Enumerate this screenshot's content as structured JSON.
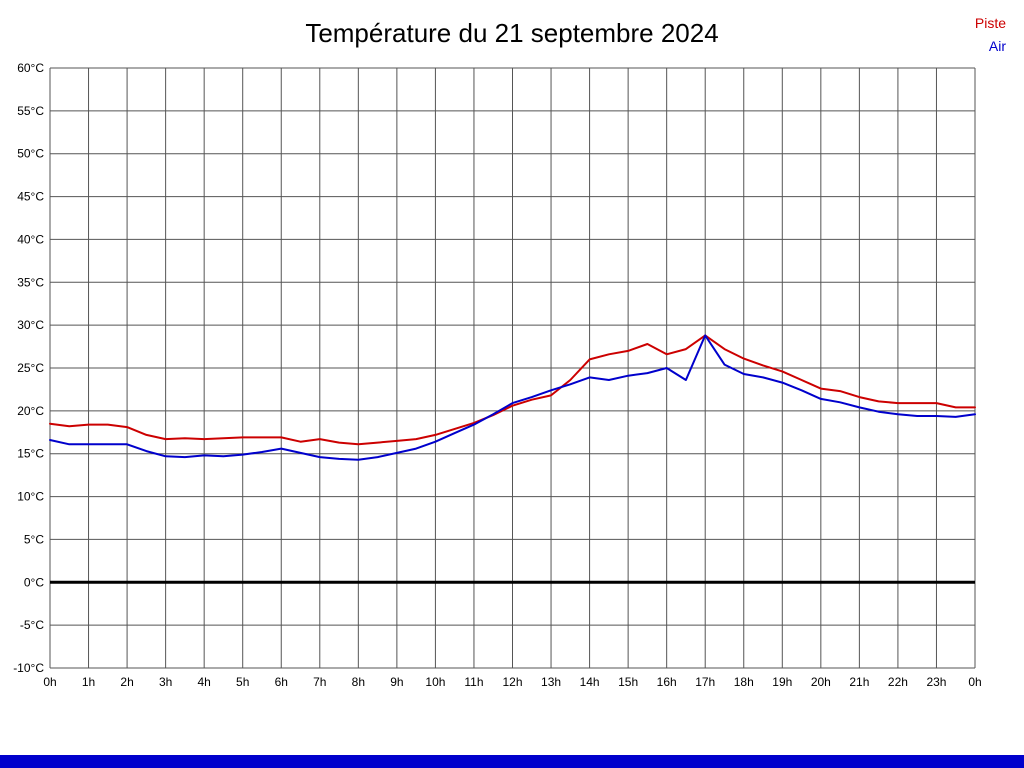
{
  "title": "Température du 21 septembre 2024",
  "legend": {
    "piste_label": "Piste",
    "air_label": "Air"
  },
  "colors": {
    "piste": "#cc0000",
    "air": "#0000cc",
    "grid": "#555555",
    "zero_line": "#000000",
    "tick_text": "#000000",
    "footer_bar": "#0000cc",
    "background": "#ffffff"
  },
  "chart_data": {
    "type": "line",
    "title": "Température du 21 septembre 2024",
    "xlabel": "",
    "ylabel": "",
    "xlim": [
      0,
      24
    ],
    "ylim": [
      -10,
      60
    ],
    "grid": true,
    "legend_position": "top-right",
    "zero_line_value": 0,
    "x_ticks": {
      "values": [
        0,
        1,
        2,
        3,
        4,
        5,
        6,
        7,
        8,
        9,
        10,
        11,
        12,
        13,
        14,
        15,
        16,
        17,
        18,
        19,
        20,
        21,
        22,
        23,
        24
      ],
      "labels": [
        "0h",
        "1h",
        "2h",
        "3h",
        "4h",
        "5h",
        "6h",
        "7h",
        "8h",
        "9h",
        "10h",
        "11h",
        "12h",
        "13h",
        "14h",
        "15h",
        "16h",
        "17h",
        "18h",
        "19h",
        "20h",
        "21h",
        "22h",
        "23h",
        "0h"
      ]
    },
    "y_ticks": {
      "values": [
        60,
        55,
        50,
        45,
        40,
        35,
        30,
        25,
        20,
        15,
        10,
        5,
        0,
        -5,
        -10
      ],
      "labels": [
        "60°C",
        "55°C",
        "50°C",
        "45°C",
        "40°C",
        "35°C",
        "30°C",
        "25°C",
        "20°C",
        "15°C",
        "10°C",
        "5°C",
        "0°C",
        "-5°C",
        "-10°C"
      ]
    },
    "series": [
      {
        "name": "Piste",
        "color": "#cc0000",
        "points": [
          [
            0,
            18.5
          ],
          [
            0.5,
            18.2
          ],
          [
            1,
            18.4
          ],
          [
            1.5,
            18.4
          ],
          [
            2,
            18.1
          ],
          [
            2.5,
            17.2
          ],
          [
            3,
            16.7
          ],
          [
            3.5,
            16.8
          ],
          [
            4,
            16.7
          ],
          [
            4.5,
            16.8
          ],
          [
            5,
            16.9
          ],
          [
            5.5,
            16.9
          ],
          [
            6,
            16.9
          ],
          [
            6.5,
            16.4
          ],
          [
            7,
            16.7
          ],
          [
            7.5,
            16.3
          ],
          [
            8,
            16.1
          ],
          [
            8.5,
            16.3
          ],
          [
            9,
            16.5
          ],
          [
            9.5,
            16.7
          ],
          [
            10,
            17.2
          ],
          [
            10.5,
            17.9
          ],
          [
            11,
            18.6
          ],
          [
            11.5,
            19.5
          ],
          [
            12,
            20.6
          ],
          [
            12.5,
            21.3
          ],
          [
            13,
            21.8
          ],
          [
            13.5,
            23.6
          ],
          [
            14,
            26.0
          ],
          [
            14.5,
            26.6
          ],
          [
            15,
            27.0
          ],
          [
            15.5,
            27.8
          ],
          [
            16,
            26.6
          ],
          [
            16.5,
            27.2
          ],
          [
            17,
            28.8
          ],
          [
            17.5,
            27.2
          ],
          [
            18,
            26.1
          ],
          [
            18.5,
            25.3
          ],
          [
            19,
            24.6
          ],
          [
            19.5,
            23.6
          ],
          [
            20,
            22.6
          ],
          [
            20.5,
            22.3
          ],
          [
            21,
            21.6
          ],
          [
            21.5,
            21.1
          ],
          [
            22,
            20.9
          ],
          [
            22.5,
            20.9
          ],
          [
            23,
            20.9
          ],
          [
            23.5,
            20.4
          ],
          [
            24,
            20.4
          ]
        ]
      },
      {
        "name": "Air",
        "color": "#0000cc",
        "points": [
          [
            0,
            16.6
          ],
          [
            0.5,
            16.1
          ],
          [
            1,
            16.1
          ],
          [
            1.5,
            16.1
          ],
          [
            2,
            16.1
          ],
          [
            2.5,
            15.3
          ],
          [
            3,
            14.7
          ],
          [
            3.5,
            14.6
          ],
          [
            4,
            14.8
          ],
          [
            4.5,
            14.7
          ],
          [
            5,
            14.9
          ],
          [
            5.5,
            15.2
          ],
          [
            6,
            15.6
          ],
          [
            6.5,
            15.1
          ],
          [
            7,
            14.6
          ],
          [
            7.5,
            14.4
          ],
          [
            8,
            14.3
          ],
          [
            8.5,
            14.6
          ],
          [
            9,
            15.1
          ],
          [
            9.5,
            15.6
          ],
          [
            10,
            16.4
          ],
          [
            10.5,
            17.4
          ],
          [
            11,
            18.4
          ],
          [
            11.5,
            19.6
          ],
          [
            12,
            20.9
          ],
          [
            12.5,
            21.6
          ],
          [
            13,
            22.4
          ],
          [
            13.5,
            23.1
          ],
          [
            14,
            23.9
          ],
          [
            14.5,
            23.6
          ],
          [
            15,
            24.1
          ],
          [
            15.5,
            24.4
          ],
          [
            16,
            25.0
          ],
          [
            16.5,
            23.6
          ],
          [
            17,
            28.8
          ],
          [
            17.5,
            25.4
          ],
          [
            18,
            24.3
          ],
          [
            18.5,
            23.9
          ],
          [
            19,
            23.3
          ],
          [
            19.5,
            22.4
          ],
          [
            20,
            21.4
          ],
          [
            20.5,
            21.0
          ],
          [
            21,
            20.4
          ],
          [
            21.5,
            19.9
          ],
          [
            22,
            19.6
          ],
          [
            22.5,
            19.4
          ],
          [
            23,
            19.4
          ],
          [
            23.5,
            19.3
          ],
          [
            24,
            19.6
          ]
        ]
      }
    ]
  }
}
